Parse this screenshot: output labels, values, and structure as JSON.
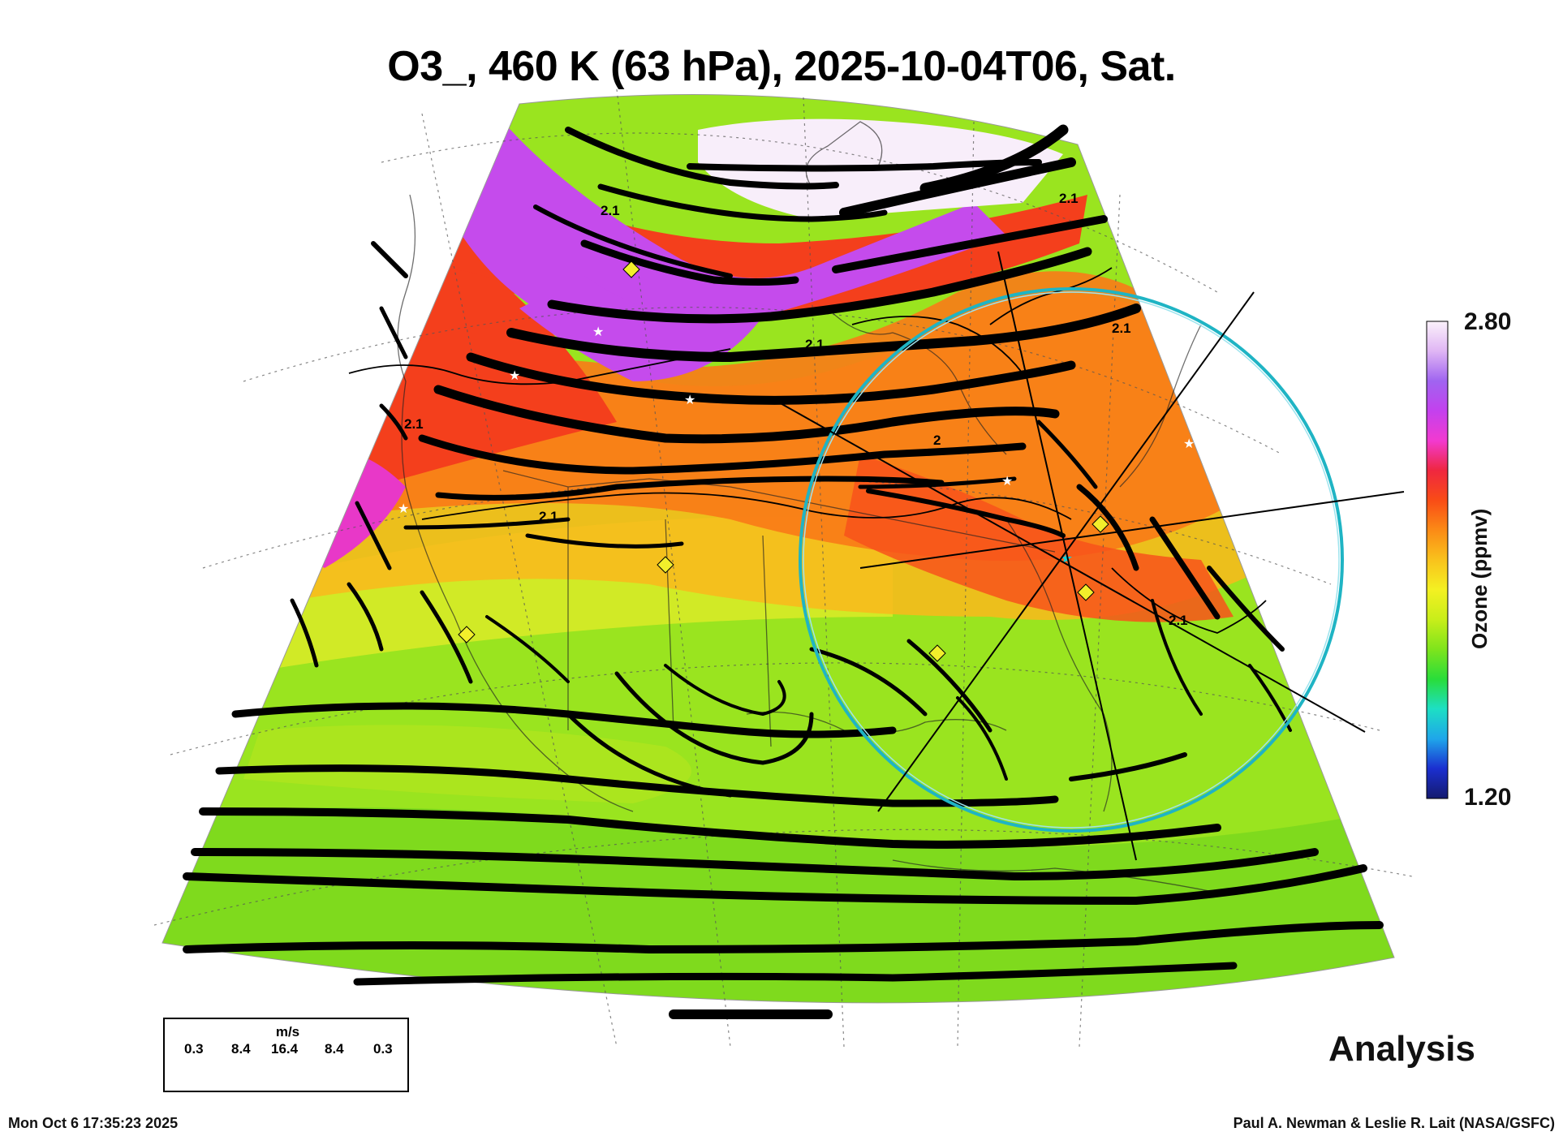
{
  "title": "O3_, 460 K (63 hPa), 2025-10-04T06, Sat.",
  "colorbar": {
    "max_label": "2.80",
    "min_label": "1.20",
    "title": "Ozone (ppmv)",
    "colors": [
      "#141a6e",
      "#1b2fd0",
      "#1fa6ea",
      "#1ddfc4",
      "#29dd3a",
      "#7fe41c",
      "#c8ee1a",
      "#f4f022",
      "#f9c21c",
      "#fb8a16",
      "#f94c16",
      "#ef2740",
      "#f23ad0",
      "#c341ee",
      "#a064f0",
      "#e0b6f4",
      "#fbf2fb"
    ]
  },
  "wind_legend": {
    "unit": "m/s",
    "ticks": [
      "0.3",
      "8.4",
      "16.4",
      "8.4",
      "0.3"
    ]
  },
  "contour_labels": [
    "2.1",
    "2.1",
    "2.1",
    "2",
    "2.1",
    "2.1",
    "2.1",
    "2.1"
  ],
  "analysis_label": "Analysis",
  "timestamp": "Mon Oct  6 17:35:23 2025",
  "credit": "Paul A. Newman & Leslie R. Lait (NASA/GSFC)"
}
